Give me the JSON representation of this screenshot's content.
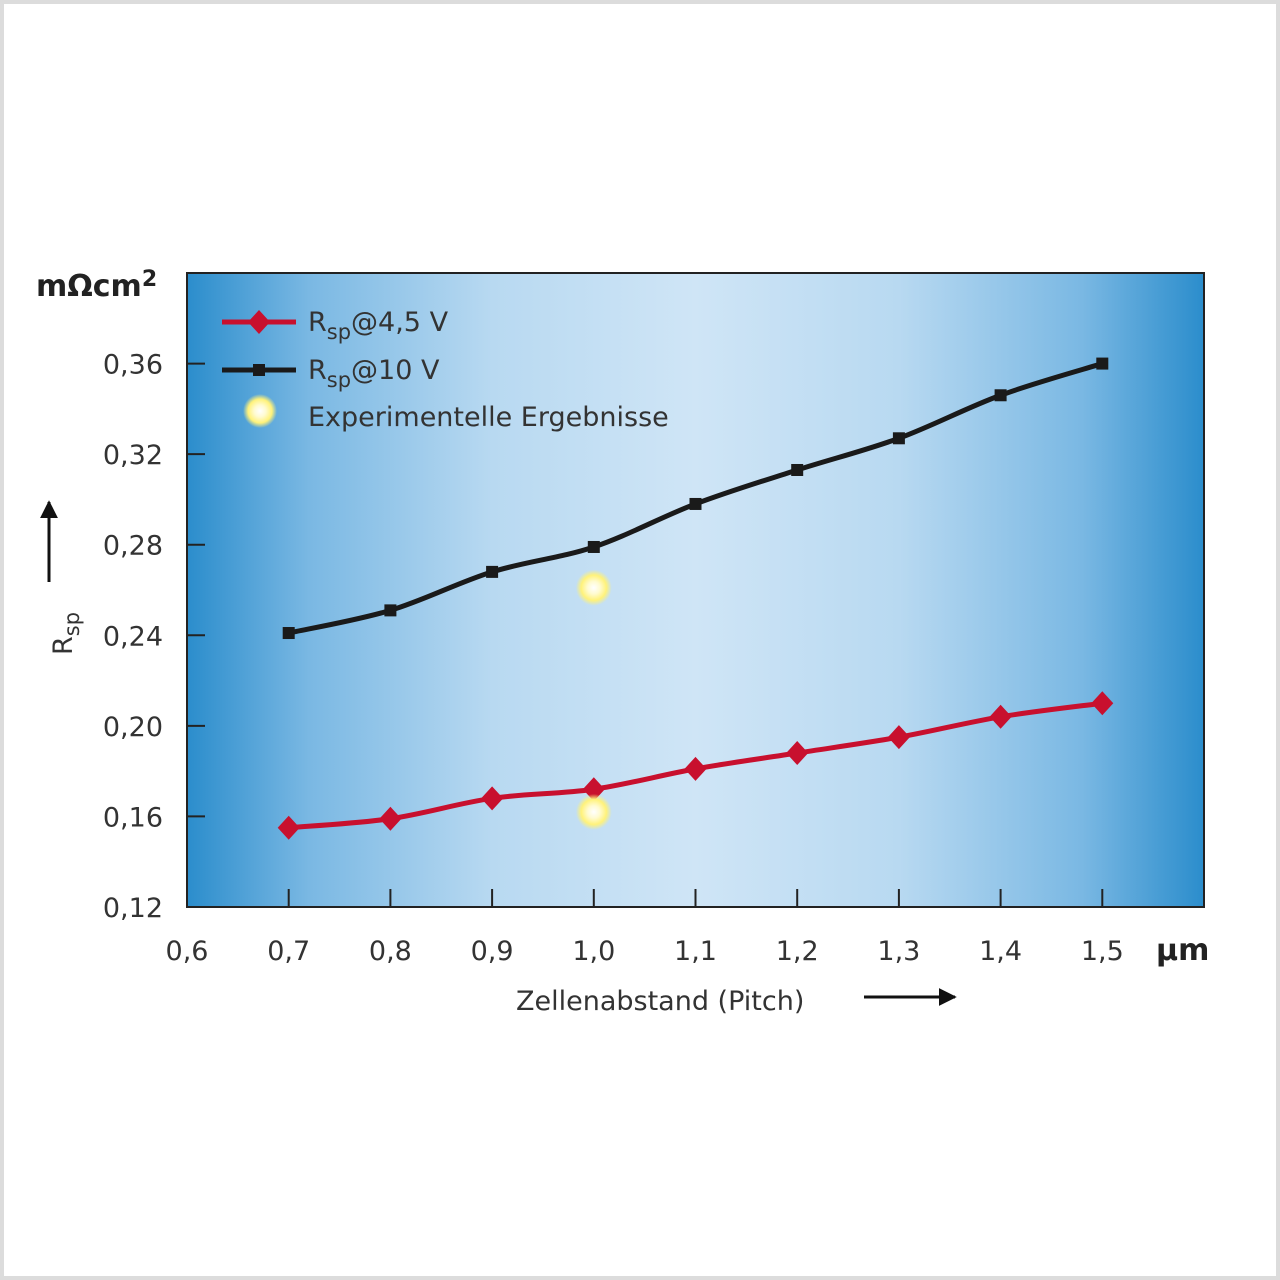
{
  "chart_data": {
    "type": "line",
    "title": "",
    "xlabel": "Zellenabstand (Pitch)",
    "ylabel": {
      "main": "R",
      "sub": "sp"
    },
    "x_unit": "µm",
    "y_unit": {
      "main": "mΩcm",
      "sup": "2"
    },
    "xlim": [
      0.6,
      1.6
    ],
    "ylim": [
      0.12,
      0.4
    ],
    "x_ticks": [
      0.6,
      0.7,
      0.8,
      0.9,
      1.0,
      1.1,
      1.2,
      1.3,
      1.4,
      1.5
    ],
    "x_tick_labels": [
      "0,6",
      "0,7",
      "0,8",
      "0,9",
      "1,0",
      "1,1",
      "1,2",
      "1,3",
      "1,4",
      "1,5"
    ],
    "y_ticks": [
      0.12,
      0.16,
      0.2,
      0.24,
      0.28,
      0.32,
      0.36
    ],
    "y_tick_labels": [
      "0,12",
      "0,16",
      "0,20",
      "0,24",
      "0,28",
      "0,32",
      "0,36"
    ],
    "legend_position": "top-left",
    "grid": false,
    "series": [
      {
        "name": {
          "main": "R",
          "sub": "sp",
          "rest": "@4,5 V"
        },
        "color": "#c8102e",
        "marker": "diamond",
        "x": [
          0.7,
          0.8,
          0.9,
          1.0,
          1.1,
          1.2,
          1.3,
          1.4,
          1.5
        ],
        "y": [
          0.155,
          0.159,
          0.168,
          0.172,
          0.181,
          0.188,
          0.195,
          0.204,
          0.21
        ]
      },
      {
        "name": {
          "main": "R",
          "sub": "sp",
          "rest": "@10 V"
        },
        "color": "#1a1a1a",
        "marker": "square",
        "x": [
          0.7,
          0.8,
          0.9,
          1.0,
          1.1,
          1.2,
          1.3,
          1.4,
          1.5
        ],
        "y": [
          0.241,
          0.251,
          0.268,
          0.279,
          0.298,
          0.313,
          0.327,
          0.346,
          0.36
        ]
      },
      {
        "name": {
          "main": "Experimentelle Ergebnisse",
          "sub": "",
          "rest": ""
        },
        "color": "#fff27a",
        "marker": "glow-dot",
        "x": [
          1.0,
          1.0
        ],
        "y": [
          0.261,
          0.162
        ]
      }
    ]
  }
}
